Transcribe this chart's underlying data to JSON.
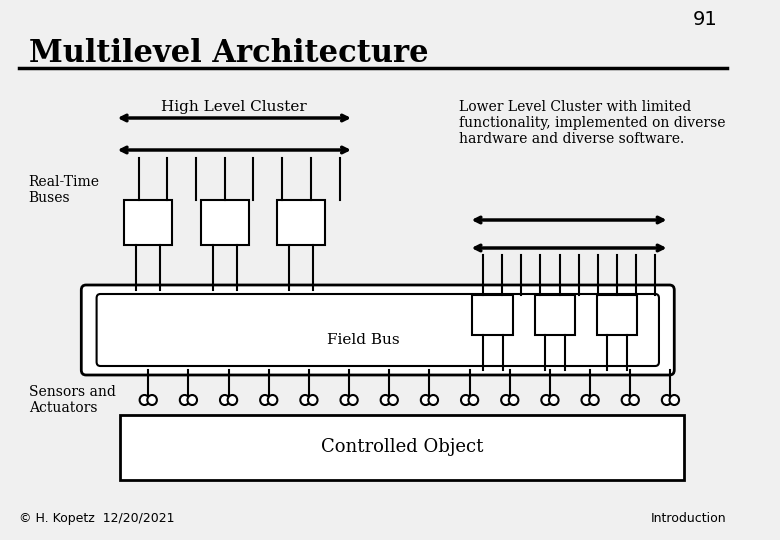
{
  "title": "Multilevel Architecture",
  "slide_number": "91",
  "footer_left": "© H. Kopetz  12/20/2021",
  "footer_right": "Introduction",
  "high_level_label": "High Level Cluster",
  "low_level_label": "Lower Level Cluster with limited\nfunctionality, implemented on diverse\nhardware and diverse software.",
  "rt_buses_label": "Real-Time\nBuses",
  "field_bus_label": "Field Bus",
  "sensors_label": "Sensors and\nActuators",
  "controlled_object_label": "Controlled Object",
  "bg_color": "#f0f0f0",
  "line_color": "#000000",
  "text_color": "#000000"
}
